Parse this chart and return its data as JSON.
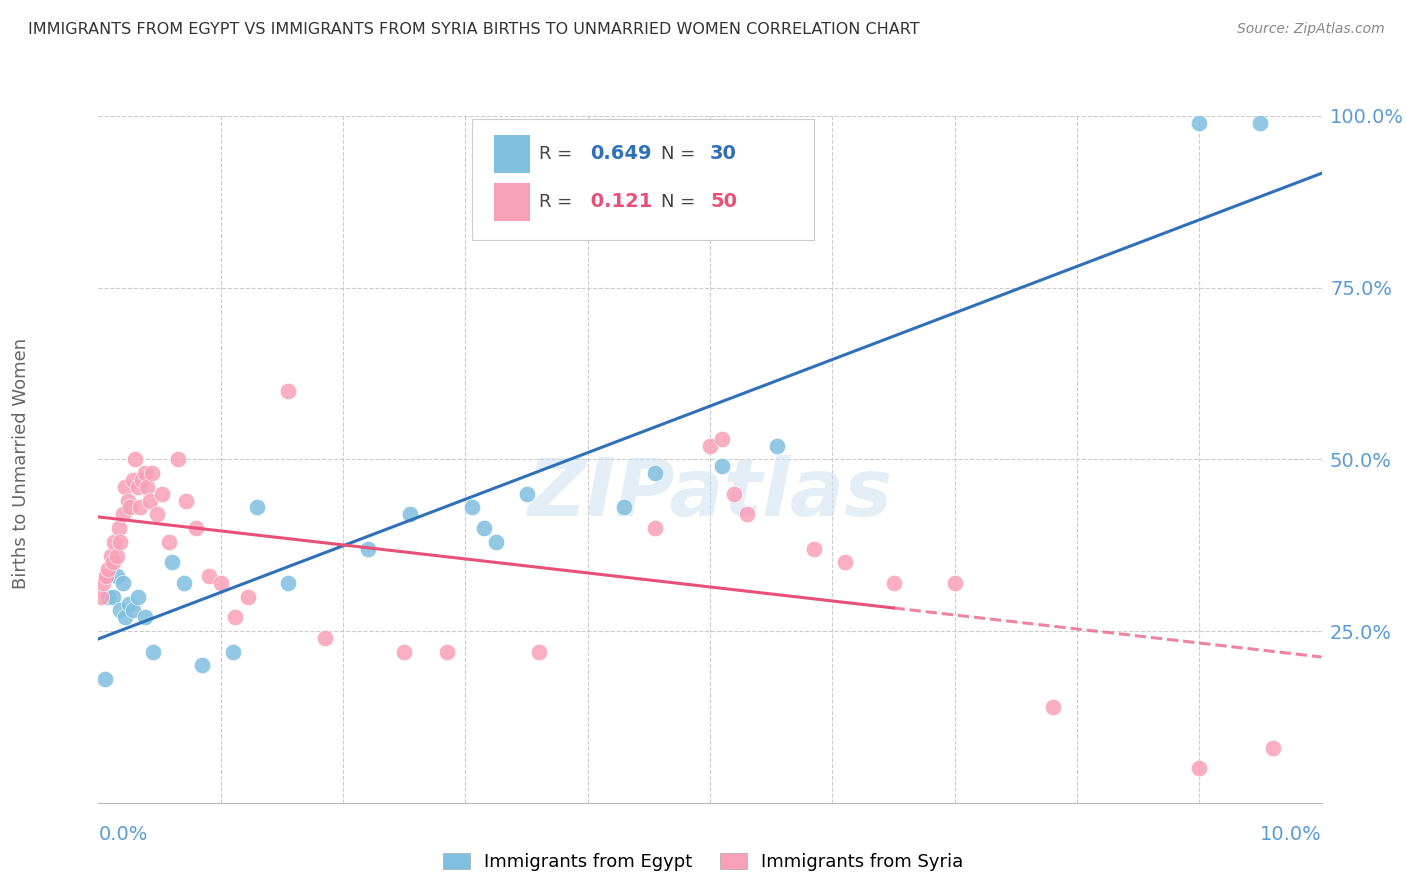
{
  "title": "IMMIGRANTS FROM EGYPT VS IMMIGRANTS FROM SYRIA BIRTHS TO UNMARRIED WOMEN CORRELATION CHART",
  "source": "Source: ZipAtlas.com",
  "ylabel": "Births to Unmarried Women",
  "watermark": "ZIPatlas",
  "legend_egypt_r": "0.649",
  "legend_egypt_n": "30",
  "legend_syria_r": "0.121",
  "legend_syria_n": "50",
  "color_egypt": "#7fbfdf",
  "color_syria": "#f8a0b8",
  "color_egypt_line": "#3070b8",
  "color_syria_line": "#e8507a",
  "xlim": [
    0.0,
    10.0
  ],
  "ylim": [
    0.0,
    100.0
  ],
  "yticks_right": [
    25.0,
    50.0,
    75.0,
    100.0
  ],
  "egypt_x": [
    0.05,
    0.08,
    0.12,
    0.15,
    0.18,
    0.2,
    0.22,
    0.25,
    0.28,
    0.32,
    0.38,
    0.45,
    0.6,
    0.7,
    0.85,
    1.1,
    1.3,
    1.55,
    2.2,
    2.55,
    3.05,
    3.15,
    3.25,
    3.5,
    4.3,
    4.55,
    5.1,
    5.55,
    9.0,
    9.5
  ],
  "egypt_y": [
    18.0,
    30.0,
    30.0,
    33.0,
    28.0,
    32.0,
    27.0,
    29.0,
    28.0,
    30.0,
    27.0,
    22.0,
    35.0,
    32.0,
    20.0,
    22.0,
    43.0,
    32.0,
    37.0,
    42.0,
    43.0,
    40.0,
    38.0,
    45.0,
    43.0,
    48.0,
    49.0,
    52.0,
    99.0,
    99.0
  ],
  "syria_x": [
    0.02,
    0.04,
    0.06,
    0.08,
    0.1,
    0.12,
    0.13,
    0.15,
    0.17,
    0.18,
    0.2,
    0.22,
    0.24,
    0.26,
    0.28,
    0.3,
    0.32,
    0.34,
    0.36,
    0.38,
    0.4,
    0.42,
    0.44,
    0.48,
    0.52,
    0.58,
    0.65,
    0.72,
    0.8,
    0.9,
    1.0,
    1.12,
    1.22,
    1.55,
    1.85,
    2.5,
    2.85,
    3.6,
    4.55,
    5.0,
    5.1,
    5.2,
    5.3,
    5.85,
    6.1,
    6.5,
    7.0,
    7.8,
    9.0,
    9.6
  ],
  "syria_y": [
    30.0,
    32.0,
    33.0,
    34.0,
    36.0,
    35.0,
    38.0,
    36.0,
    40.0,
    38.0,
    42.0,
    46.0,
    44.0,
    43.0,
    47.0,
    50.0,
    46.0,
    43.0,
    47.0,
    48.0,
    46.0,
    44.0,
    48.0,
    42.0,
    45.0,
    38.0,
    50.0,
    44.0,
    40.0,
    33.0,
    32.0,
    27.0,
    30.0,
    60.0,
    24.0,
    22.0,
    22.0,
    22.0,
    40.0,
    52.0,
    53.0,
    45.0,
    42.0,
    37.0,
    35.0,
    32.0,
    32.0,
    14.0,
    5.0,
    8.0
  ],
  "bg_color": "#ffffff",
  "grid_color": "#cccccc",
  "title_color": "#333333",
  "tick_color": "#5b9bd5",
  "ylabel_color": "#666666"
}
